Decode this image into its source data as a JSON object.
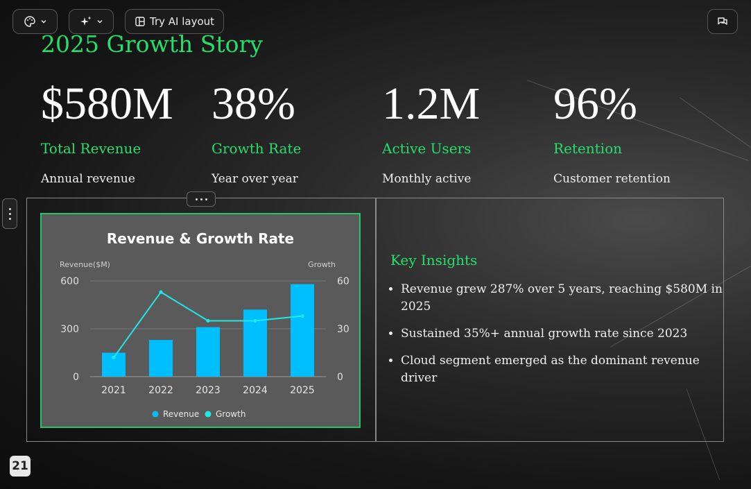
{
  "toolbar": {
    "ai_layout_label": "Try AI layout"
  },
  "slide": {
    "title": "2025 Growth Story",
    "stats": [
      {
        "value": "$580M",
        "label": "Total Revenue",
        "sub": "Annual revenue"
      },
      {
        "value": "38%",
        "label": "Growth Rate",
        "sub": "Year over year"
      },
      {
        "value": "1.2M",
        "label": "Active Users",
        "sub": "Monthly active"
      },
      {
        "value": "96%",
        "label": "Retention",
        "sub": "Customer retention"
      }
    ],
    "insights_title": "Key Insights",
    "insights": [
      "Revenue grew 287% over 5 years, reaching $580M in 2025",
      "Sustained 35%+ annual growth rate since 2023",
      "Cloud segment emerged as the dominant revenue driver"
    ],
    "page_number": "21"
  },
  "chart_data": {
    "type": "bar",
    "title": "Revenue & Growth Rate",
    "categories": [
      "2021",
      "2022",
      "2023",
      "2024",
      "2025"
    ],
    "ylabel_left": "Revenue($M)",
    "ylabel_right": "Growth",
    "ylim_left": [
      0,
      600
    ],
    "ylim_right": [
      0,
      60
    ],
    "yticks_left": [
      "0",
      "300",
      "600"
    ],
    "yticks_right": [
      "0",
      "30",
      "60"
    ],
    "series": [
      {
        "name": "Revenue",
        "type": "bar",
        "axis": "left",
        "values": [
          150,
          230,
          310,
          420,
          580
        ]
      },
      {
        "name": "Growth",
        "type": "line",
        "axis": "right",
        "values": [
          12,
          53,
          35,
          35,
          38
        ]
      }
    ],
    "colors": {
      "bar": "#00bfff",
      "line": "#1ee8e8",
      "title": "#ffffff"
    },
    "legend": "bottom",
    "grid": true
  }
}
